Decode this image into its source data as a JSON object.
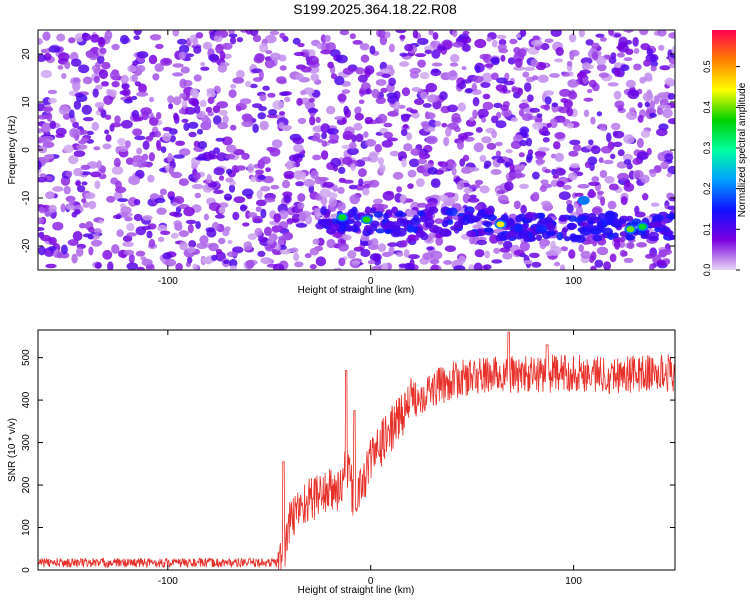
{
  "title": "S199.2025.364.18.22.R08",
  "chart_data": [
    {
      "type": "heatmap",
      "xlabel": "Height of straight line (km)",
      "ylabel": "Frequency (Hz)",
      "xlim": [
        -164,
        150
      ],
      "ylim": [
        -25,
        25
      ],
      "xticks": [
        -100,
        0,
        100
      ],
      "yticks": [
        -20,
        -10,
        0,
        10,
        20
      ],
      "grid": false,
      "colorbar": {
        "label": "Normalized spectral amplitude",
        "range": [
          0,
          0.59
        ],
        "ticks": [
          0,
          0.1,
          0.2,
          0.3,
          0.4,
          0.5
        ],
        "colormap": [
          "#e8d8f5",
          "#7b00e0",
          "#1010ff",
          "#00a0ff",
          "#00ffa0",
          "#00d000",
          "#ffff00",
          "#ff7f00",
          "#ff0050"
        ]
      },
      "signal_band": {
        "center_freq_hz": -15,
        "start_km": -25,
        "end_km": 150,
        "peaks": [
          {
            "x": -14,
            "y": -14,
            "value": 0.35
          },
          {
            "x": -2,
            "y": -14.5,
            "value": 0.38
          },
          {
            "x": 64,
            "y": -15.5,
            "value": 0.45
          },
          {
            "x": 128,
            "y": -16.5,
            "value": 0.4
          },
          {
            "x": 134,
            "y": -16,
            "value": 0.35
          },
          {
            "x": 105,
            "y": -10.5,
            "value": 0.2
          }
        ]
      }
    },
    {
      "type": "line",
      "xlabel": "Height of straight line (km)",
      "ylabel": "SNR (10 * v/v)",
      "xlim": [
        -164,
        150
      ],
      "ylim": [
        0,
        565
      ],
      "xticks": [
        -100,
        0,
        100
      ],
      "yticks": [
        0,
        100,
        200,
        300,
        400,
        500
      ],
      "grid": false,
      "series": [
        {
          "color": "#e8302a",
          "x": [
            -164,
            -50,
            -46,
            -43,
            -40,
            -35,
            -30,
            -25,
            -20,
            -15,
            -12,
            -8,
            -5,
            0,
            10,
            20,
            30,
            40,
            50,
            60,
            70,
            80,
            100,
            120,
            150
          ],
          "y": [
            17,
            17,
            17,
            40,
            110,
            150,
            165,
            180,
            185,
            190,
            250,
            160,
            190,
            260,
            330,
            400,
            425,
            445,
            455,
            460,
            460,
            460,
            465,
            460,
            465
          ],
          "spikes": [
            {
              "x": -43,
              "y": 255
            },
            {
              "x": -12,
              "y": 470
            },
            {
              "x": -8,
              "y": 375
            },
            {
              "x": 68,
              "y": 560
            },
            {
              "x": 87,
              "y": 530
            }
          ]
        }
      ]
    }
  ]
}
